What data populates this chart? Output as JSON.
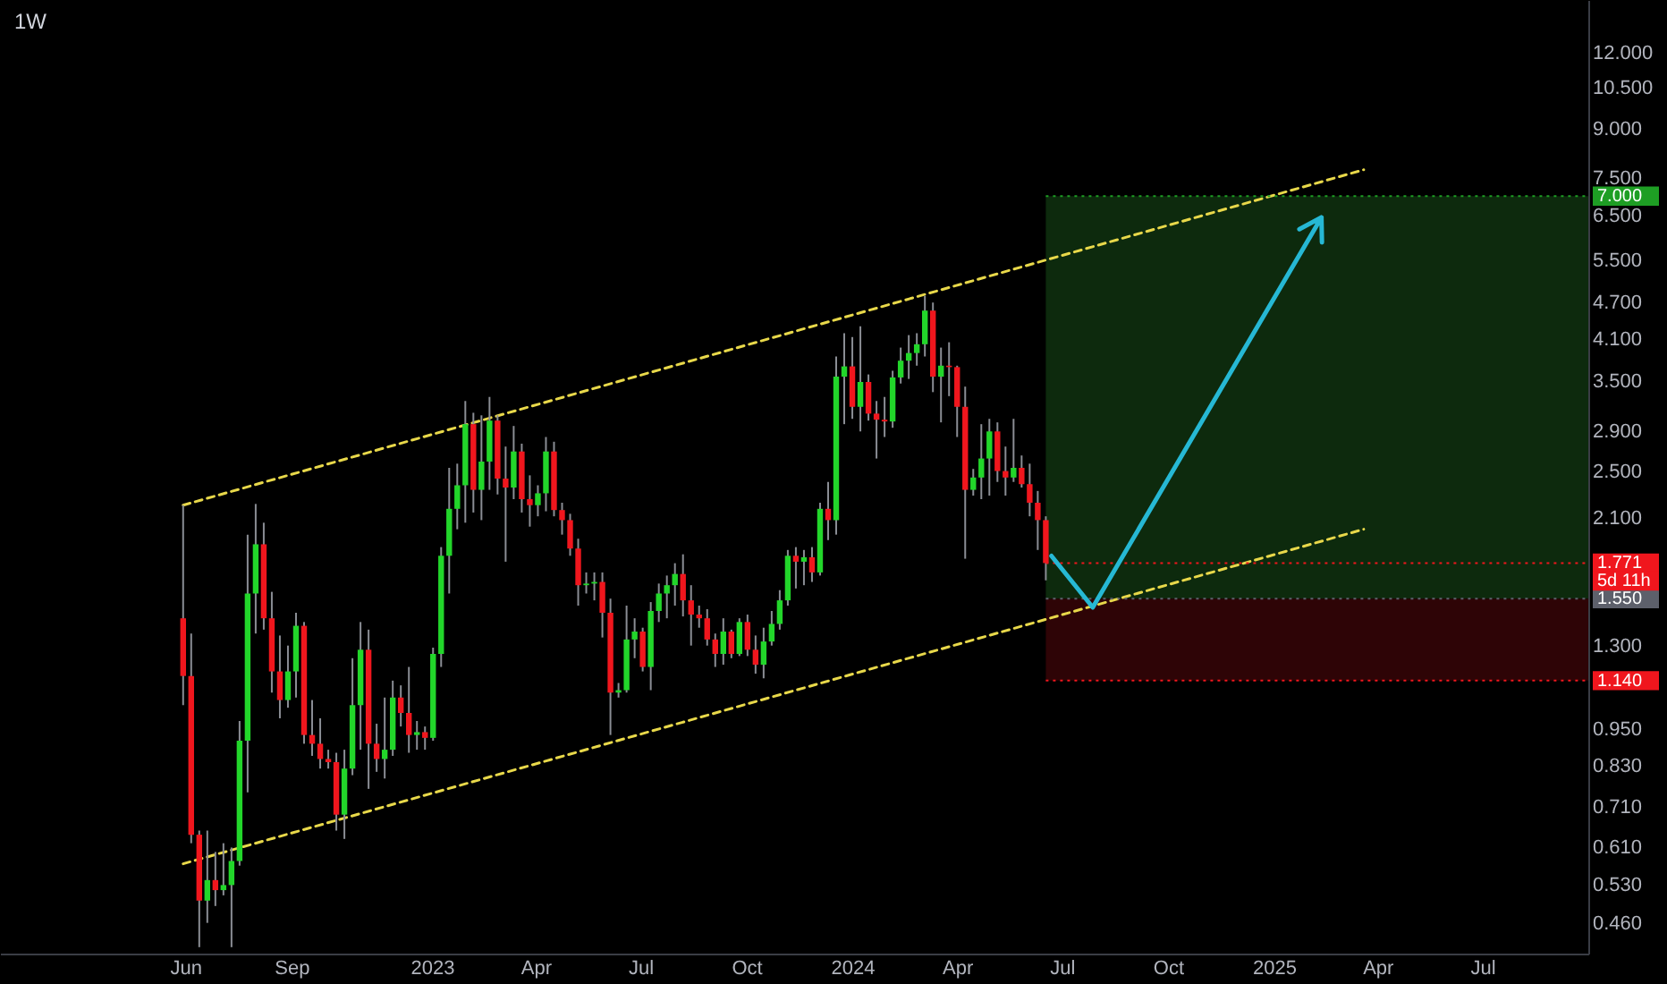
{
  "chart_data": {
    "type": "candlestick",
    "title": "1W",
    "x": [
      "2022-05-30",
      "2022-06-06",
      "2022-06-13",
      "2022-06-20",
      "2022-06-27",
      "2022-07-04",
      "2022-07-11",
      "2022-07-18",
      "2022-07-25",
      "2022-08-01",
      "2022-08-08",
      "2022-08-15",
      "2022-08-22",
      "2022-08-29",
      "2022-09-05",
      "2022-09-12",
      "2022-09-19",
      "2022-09-26",
      "2022-10-03",
      "2022-10-10",
      "2022-10-17",
      "2022-10-24",
      "2022-10-31",
      "2022-11-07",
      "2022-11-14",
      "2022-11-21",
      "2022-11-28",
      "2022-12-05",
      "2022-12-12",
      "2022-12-19",
      "2022-12-26",
      "2023-01-02",
      "2023-01-09",
      "2023-01-16",
      "2023-01-23",
      "2023-01-30",
      "2023-02-06",
      "2023-02-13",
      "2023-02-20",
      "2023-02-27",
      "2023-03-06",
      "2023-03-13",
      "2023-03-20",
      "2023-03-27",
      "2023-04-03",
      "2023-04-10",
      "2023-04-17",
      "2023-04-24",
      "2023-05-01",
      "2023-05-08",
      "2023-05-15",
      "2023-05-22",
      "2023-05-29",
      "2023-06-05",
      "2023-06-12",
      "2023-06-19",
      "2023-06-26",
      "2023-07-03",
      "2023-07-10",
      "2023-07-17",
      "2023-07-24",
      "2023-07-31",
      "2023-08-07",
      "2023-08-14",
      "2023-08-21",
      "2023-08-28",
      "2023-09-04",
      "2023-09-11",
      "2023-09-18",
      "2023-09-25",
      "2023-10-02",
      "2023-10-09",
      "2023-10-16",
      "2023-10-23",
      "2023-10-30",
      "2023-11-06",
      "2023-11-13",
      "2023-11-20",
      "2023-11-27",
      "2023-12-04",
      "2023-12-11",
      "2023-12-18",
      "2023-12-25",
      "2024-01-01",
      "2024-01-08",
      "2024-01-15",
      "2024-01-22",
      "2024-01-29",
      "2024-02-05",
      "2024-02-12",
      "2024-02-19",
      "2024-02-26",
      "2024-03-04",
      "2024-03-11",
      "2024-03-18",
      "2024-03-25",
      "2024-04-01",
      "2024-04-08",
      "2024-04-15",
      "2024-04-22",
      "2024-04-29",
      "2024-05-06",
      "2024-05-13",
      "2024-05-20",
      "2024-05-27",
      "2024-06-03",
      "2024-06-10",
      "2024-06-17"
    ],
    "ohlc": [
      [
        1.44,
        2.2,
        1.04,
        1.16
      ],
      [
        1.16,
        1.36,
        0.62,
        0.64
      ],
      [
        0.64,
        0.65,
        0.42,
        0.5
      ],
      [
        0.5,
        0.65,
        0.46,
        0.54
      ],
      [
        0.54,
        0.6,
        0.49,
        0.52
      ],
      [
        0.52,
        0.62,
        0.51,
        0.53
      ],
      [
        0.53,
        0.61,
        0.42,
        0.58
      ],
      [
        0.58,
        0.98,
        0.57,
        0.91
      ],
      [
        0.91,
        1.97,
        0.75,
        1.58
      ],
      [
        1.58,
        2.21,
        1.36,
        1.9
      ],
      [
        1.9,
        2.06,
        1.38,
        1.44
      ],
      [
        1.44,
        1.59,
        1.09,
        1.18
      ],
      [
        1.18,
        1.35,
        0.99,
        1.06
      ],
      [
        1.06,
        1.3,
        1.03,
        1.18
      ],
      [
        1.18,
        1.47,
        1.07,
        1.4
      ],
      [
        1.4,
        1.42,
        0.9,
        0.93
      ],
      [
        0.93,
        1.06,
        0.86,
        0.9
      ],
      [
        0.9,
        0.99,
        0.82,
        0.85
      ],
      [
        0.85,
        0.88,
        0.82,
        0.84
      ],
      [
        0.84,
        0.87,
        0.65,
        0.69
      ],
      [
        0.69,
        0.88,
        0.63,
        0.82
      ],
      [
        0.82,
        1.24,
        0.8,
        1.04
      ],
      [
        1.04,
        1.42,
        0.88,
        1.28
      ],
      [
        1.28,
        1.38,
        0.76,
        0.9
      ],
      [
        0.9,
        0.97,
        0.81,
        0.85
      ],
      [
        0.85,
        1.07,
        0.79,
        0.88
      ],
      [
        0.88,
        1.14,
        0.86,
        1.07
      ],
      [
        1.07,
        1.12,
        0.96,
        1.01
      ],
      [
        1.01,
        1.2,
        0.87,
        0.93
      ],
      [
        0.93,
        0.98,
        0.88,
        0.94
      ],
      [
        0.94,
        0.96,
        0.88,
        0.92
      ],
      [
        0.92,
        1.29,
        0.91,
        1.26
      ],
      [
        1.26,
        1.88,
        1.2,
        1.82
      ],
      [
        1.82,
        2.53,
        1.58,
        2.17
      ],
      [
        2.17,
        2.57,
        2.01,
        2.37
      ],
      [
        2.37,
        3.25,
        2.06,
        2.98
      ],
      [
        2.98,
        3.11,
        2.14,
        2.33
      ],
      [
        2.33,
        3.08,
        2.08,
        2.59
      ],
      [
        2.59,
        3.3,
        2.33,
        3.02
      ],
      [
        3.02,
        3.08,
        2.29,
        2.43
      ],
      [
        2.43,
        2.74,
        1.78,
        2.35
      ],
      [
        2.35,
        2.96,
        2.25,
        2.69
      ],
      [
        2.69,
        2.77,
        2.14,
        2.25
      ],
      [
        2.25,
        2.46,
        2.03,
        2.2
      ],
      [
        2.2,
        2.37,
        2.11,
        2.3
      ],
      [
        2.3,
        2.84,
        2.15,
        2.69
      ],
      [
        2.69,
        2.79,
        2.11,
        2.16
      ],
      [
        2.16,
        2.22,
        1.97,
        2.08
      ],
      [
        2.08,
        2.13,
        1.82,
        1.87
      ],
      [
        1.87,
        1.94,
        1.51,
        1.63
      ],
      [
        1.63,
        1.71,
        1.58,
        1.64
      ],
      [
        1.64,
        1.71,
        1.54,
        1.65
      ],
      [
        1.65,
        1.71,
        1.34,
        1.47
      ],
      [
        1.47,
        1.55,
        0.93,
        1.09
      ],
      [
        1.09,
        1.13,
        1.07,
        1.1
      ],
      [
        1.1,
        1.51,
        1.09,
        1.33
      ],
      [
        1.33,
        1.44,
        1.24,
        1.37
      ],
      [
        1.37,
        1.39,
        1.18,
        1.2
      ],
      [
        1.2,
        1.53,
        1.1,
        1.48
      ],
      [
        1.48,
        1.64,
        1.42,
        1.58
      ],
      [
        1.58,
        1.69,
        1.44,
        1.63
      ],
      [
        1.63,
        1.77,
        1.51,
        1.7
      ],
      [
        1.7,
        1.83,
        1.45,
        1.54
      ],
      [
        1.54,
        1.63,
        1.3,
        1.46
      ],
      [
        1.46,
        1.51,
        1.39,
        1.44
      ],
      [
        1.44,
        1.49,
        1.3,
        1.33
      ],
      [
        1.33,
        1.36,
        1.2,
        1.26
      ],
      [
        1.26,
        1.44,
        1.21,
        1.37
      ],
      [
        1.37,
        1.38,
        1.24,
        1.26
      ],
      [
        1.26,
        1.44,
        1.25,
        1.42
      ],
      [
        1.42,
        1.46,
        1.25,
        1.28
      ],
      [
        1.28,
        1.35,
        1.17,
        1.21
      ],
      [
        1.21,
        1.39,
        1.15,
        1.32
      ],
      [
        1.32,
        1.48,
        1.3,
        1.41
      ],
      [
        1.41,
        1.6,
        1.38,
        1.54
      ],
      [
        1.54,
        1.86,
        1.51,
        1.82
      ],
      [
        1.82,
        1.88,
        1.61,
        1.78
      ],
      [
        1.78,
        1.86,
        1.63,
        1.81
      ],
      [
        1.81,
        1.88,
        1.65,
        1.71
      ],
      [
        1.71,
        2.22,
        1.69,
        2.17
      ],
      [
        2.17,
        2.4,
        1.93,
        2.08
      ],
      [
        2.08,
        3.84,
        1.97,
        3.56
      ],
      [
        3.56,
        4.19,
        2.98,
        3.7
      ],
      [
        3.7,
        4.13,
        3.04,
        3.18
      ],
      [
        3.18,
        4.3,
        2.9,
        3.49
      ],
      [
        3.49,
        3.59,
        3.02,
        3.1
      ],
      [
        3.1,
        3.25,
        2.62,
        3.03
      ],
      [
        3.03,
        3.3,
        2.84,
        3.01
      ],
      [
        3.01,
        3.64,
        2.94,
        3.55
      ],
      [
        3.55,
        3.97,
        3.47,
        3.78
      ],
      [
        3.78,
        4.16,
        3.53,
        3.89
      ],
      [
        3.89,
        4.19,
        3.71,
        4.02
      ],
      [
        4.02,
        4.82,
        3.84,
        4.56
      ],
      [
        4.56,
        4.7,
        3.36,
        3.56
      ],
      [
        3.56,
        3.97,
        3.0,
        3.71
      ],
      [
        3.71,
        4.05,
        3.31,
        3.69
      ],
      [
        3.69,
        3.71,
        2.84,
        3.18
      ],
      [
        3.18,
        3.43,
        1.8,
        2.33
      ],
      [
        2.33,
        2.52,
        2.28,
        2.44
      ],
      [
        2.44,
        2.98,
        2.25,
        2.62
      ],
      [
        2.62,
        3.04,
        2.28,
        2.9
      ],
      [
        2.9,
        3.0,
        2.4,
        2.5
      ],
      [
        2.5,
        2.74,
        2.28,
        2.44
      ],
      [
        2.44,
        3.04,
        2.4,
        2.53
      ],
      [
        2.53,
        2.65,
        2.35,
        2.38
      ],
      [
        2.38,
        2.57,
        2.11,
        2.22
      ],
      [
        2.22,
        2.32,
        1.86,
        2.08
      ],
      [
        2.08,
        2.11,
        1.66,
        1.771
      ]
    ],
    "colors": [
      "#f0161d",
      "#f0161d",
      "#f0161d",
      "#22d62a",
      "#f0161d",
      "#22d62a",
      "#22d62a",
      "#22d62a",
      "#22d62a",
      "#22d62a",
      "#f0161d",
      "#f0161d",
      "#f0161d",
      "#22d62a",
      "#22d62a",
      "#f0161d",
      "#f0161d",
      "#f0161d",
      "#f0161d",
      "#f0161d",
      "#22d62a",
      "#22d62a",
      "#22d62a",
      "#f0161d",
      "#f0161d",
      "#22d62a",
      "#22d62a",
      "#f0161d",
      "#f0161d",
      "#22d62a",
      "#f0161d",
      "#22d62a",
      "#22d62a",
      "#22d62a",
      "#22d62a",
      "#22d62a",
      "#f0161d",
      "#22d62a",
      "#22d62a",
      "#f0161d",
      "#f0161d",
      "#22d62a",
      "#f0161d",
      "#f0161d",
      "#22d62a",
      "#22d62a",
      "#f0161d",
      "#f0161d",
      "#f0161d",
      "#f0161d",
      "#22d62a",
      "#22d62a",
      "#f0161d",
      "#f0161d",
      "#22d62a",
      "#22d62a",
      "#22d62a",
      "#f0161d",
      "#22d62a",
      "#22d62a",
      "#22d62a",
      "#22d62a",
      "#f0161d",
      "#f0161d",
      "#f0161d",
      "#f0161d",
      "#f0161d",
      "#22d62a",
      "#f0161d",
      "#22d62a",
      "#f0161d",
      "#f0161d",
      "#22d62a",
      "#22d62a",
      "#22d62a",
      "#22d62a",
      "#f0161d",
      "#22d62a",
      "#f0161d",
      "#22d62a",
      "#f0161d",
      "#22d62a",
      "#22d62a",
      "#f0161d",
      "#22d62a",
      "#f0161d",
      "#f0161d",
      "#f0161d",
      "#22d62a",
      "#22d62a",
      "#22d62a",
      "#22d62a",
      "#22d62a",
      "#f0161d",
      "#22d62a",
      "#f0161d",
      "#f0161d",
      "#f0161d",
      "#22d62a",
      "#22d62a",
      "#22d62a",
      "#f0161d",
      "#f0161d",
      "#22d62a",
      "#f0161d",
      "#f0161d",
      "#f0161d",
      "#f0161d"
    ],
    "series": [
      {
        "type": "line",
        "color": "#e8d84a",
        "line_style": "dashed",
        "x": [
          "2022-05-30",
          "2025-03-20"
        ],
        "values": [
          2.2,
          7.73
        ]
      },
      {
        "type": "line",
        "color": "#e8d84a",
        "line_style": "dashed",
        "x": [
          "2022-05-30",
          "2025-03-20"
        ],
        "values": [
          0.574,
          2.01
        ]
      }
    ],
    "bands": [
      {
        "axis": "y",
        "from": 1.55,
        "to": 7.0,
        "color": "#0d2a0d"
      },
      {
        "axis": "y",
        "from": 1.14,
        "to": 1.55,
        "color": "#2e0406"
      }
    ],
    "ref_lines": [
      {
        "axis": "y",
        "value": 1.771,
        "label": "1.771",
        "color": "#f0161d"
      },
      {
        "axis": "y",
        "value": 7.0,
        "label": "7.000",
        "color": "#1e9e24"
      },
      {
        "axis": "y",
        "value": 1.55,
        "label": "1.550",
        "color": "#5d606b"
      },
      {
        "axis": "y",
        "value": 1.14,
        "label": "1.140",
        "color": "#f0161d"
      }
    ],
    "annotations": [
      "5d 11h"
    ],
    "log": true,
    "xlim": [
      "2021-12-22",
      "2025-10-01"
    ],
    "xticks": [
      {
        "value": "2022-06-01",
        "label": "Jun"
      },
      {
        "value": "2022-09-01",
        "label": "Sep"
      },
      {
        "value": "2023-01-01",
        "label": "2023"
      },
      {
        "value": "2023-04-01",
        "label": "Apr"
      },
      {
        "value": "2023-07-01",
        "label": "Jul"
      },
      {
        "value": "2023-10-01",
        "label": "Oct"
      },
      {
        "value": "2024-01-01",
        "label": "2024"
      },
      {
        "value": "2024-04-01",
        "label": "Apr"
      },
      {
        "value": "2024-07-01",
        "label": "Jul"
      },
      {
        "value": "2024-10-01",
        "label": "Oct"
      },
      {
        "value": "2025-01-01",
        "label": "2025"
      },
      {
        "value": "2025-04-01",
        "label": "Apr"
      },
      {
        "value": "2025-07-01",
        "label": "Jul"
      }
    ],
    "ylim": [
      0.41,
      14.6
    ],
    "yticks": [
      {
        "value": 0.46,
        "label": "0.460"
      },
      {
        "value": 0.53,
        "label": "0.530"
      },
      {
        "value": 0.61,
        "label": "0.610"
      },
      {
        "value": 0.71,
        "label": "0.710"
      },
      {
        "value": 0.83,
        "label": "0.830"
      },
      {
        "value": 0.95,
        "label": "0.950"
      },
      {
        "value": 1.3,
        "label": "1.300"
      },
      {
        "value": 2.1,
        "label": "2.100"
      },
      {
        "value": 2.5,
        "label": "2.500"
      },
      {
        "value": 2.9,
        "label": "2.900"
      },
      {
        "value": 3.5,
        "label": "3.500"
      },
      {
        "value": 4.1,
        "label": "4.100"
      },
      {
        "value": 4.7,
        "label": "4.700"
      },
      {
        "value": 5.5,
        "label": "5.500"
      },
      {
        "value": 6.5,
        "label": "6.500"
      },
      {
        "value": 7.5,
        "label": "7.500"
      },
      {
        "value": 9,
        "label": "9.000"
      },
      {
        "value": 10.5,
        "label": "10.500"
      },
      {
        "value": 12,
        "label": "12.000"
      }
    ]
  }
}
